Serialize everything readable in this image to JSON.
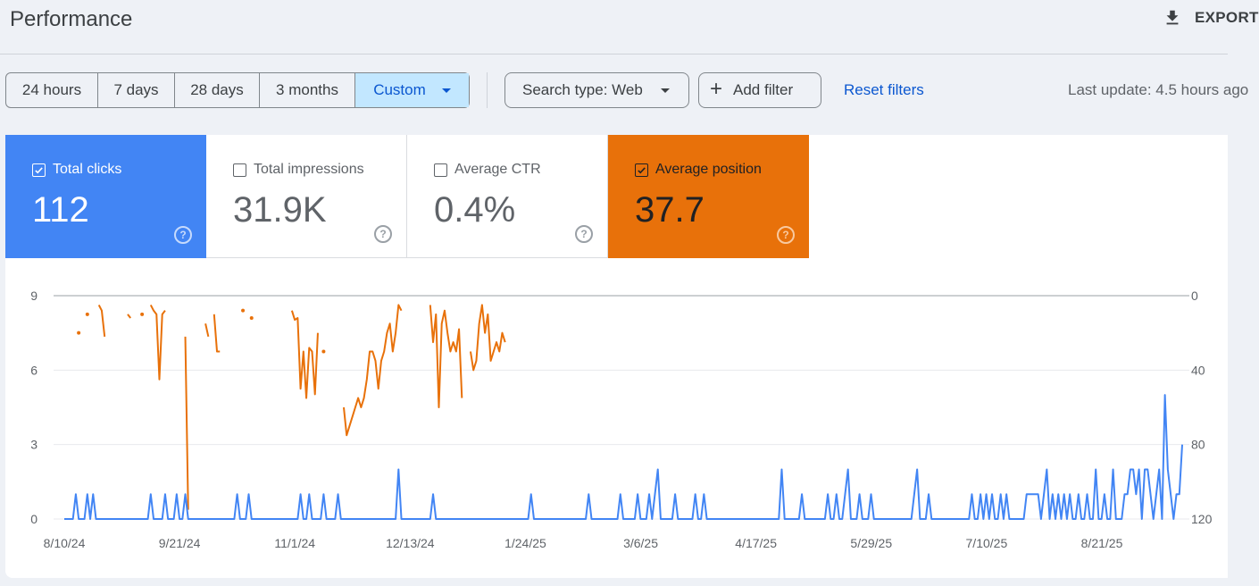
{
  "header": {
    "title": "Performance",
    "export_label": "EXPORT"
  },
  "date_ranges": {
    "options": [
      "24 hours",
      "7 days",
      "28 days",
      "3 months",
      "Custom"
    ],
    "selected": "Custom"
  },
  "filters": {
    "search_type": "Search type: Web",
    "add_filter": "Add filter",
    "reset": "Reset filters"
  },
  "last_update": "Last update: 4.5 hours ago",
  "metrics": {
    "clicks": {
      "label": "Total clicks",
      "value": "112",
      "checked": true
    },
    "impressions": {
      "label": "Total impressions",
      "value": "31.9K",
      "checked": false
    },
    "ctr": {
      "label": "Average CTR",
      "value": "0.4%",
      "checked": false
    },
    "position": {
      "label": "Average position",
      "value": "37.7",
      "checked": true
    }
  },
  "colors": {
    "clicks": "#4285f4",
    "position": "#e8710a",
    "selected_range_bg": "#c2e7ff",
    "link": "#0b57d0"
  },
  "chart_data": {
    "type": "line",
    "x_tick_labels": [
      "8/10/24",
      "9/21/24",
      "11/1/24",
      "12/13/24",
      "1/24/25",
      "3/6/25",
      "4/17/25",
      "5/29/25",
      "7/10/25",
      "8/21/25"
    ],
    "left_axis": {
      "series": "Total clicks",
      "ticks": [
        0,
        3,
        6,
        9
      ],
      "ylim": [
        0,
        9
      ]
    },
    "right_axis": {
      "series": "Average position",
      "ticks": [
        0,
        40,
        80,
        120
      ],
      "ylim": [
        120,
        0
      ],
      "inverted": true
    },
    "grid": true,
    "series": [
      {
        "name": "Total clicks",
        "axis": "left",
        "values": [
          0,
          0,
          0,
          0,
          1,
          0,
          0,
          0,
          1,
          0,
          1,
          0,
          0,
          0,
          0,
          0,
          0,
          0,
          0,
          0,
          0,
          0,
          0,
          0,
          0,
          0,
          0,
          0,
          0,
          0,
          1,
          0,
          0,
          0,
          0,
          1,
          0,
          0,
          0,
          1,
          0,
          0,
          1,
          0,
          0,
          0,
          0,
          0,
          0,
          0,
          0,
          0,
          0,
          0,
          0,
          0,
          0,
          0,
          0,
          0,
          1,
          0,
          0,
          0,
          1,
          0,
          0,
          0,
          0,
          0,
          0,
          0,
          0,
          0,
          0,
          0,
          0,
          0,
          0,
          0,
          0,
          0,
          1,
          0,
          0,
          1,
          0,
          0,
          0,
          0,
          1,
          0,
          0,
          0,
          0,
          1,
          0,
          0,
          0,
          0,
          0,
          0,
          0,
          0,
          0,
          0,
          0,
          0,
          0,
          0,
          0,
          0,
          0,
          0,
          0,
          0,
          2,
          0,
          0,
          0,
          0,
          0,
          0,
          0,
          0,
          0,
          0,
          0,
          1,
          0,
          0,
          0,
          0,
          0,
          0,
          0,
          0,
          0,
          0,
          0,
          0,
          0,
          0,
          0,
          0,
          0,
          0,
          0,
          0,
          0,
          0,
          0,
          0,
          0,
          0,
          0,
          0,
          0,
          0,
          0,
          0,
          0,
          1,
          0,
          0,
          0,
          0,
          0,
          0,
          0,
          0,
          0,
          0,
          0,
          0,
          0,
          0,
          0,
          0,
          0,
          0,
          0,
          1,
          0,
          0,
          0,
          0,
          0,
          0,
          0,
          0,
          0,
          0,
          1,
          0,
          0,
          0,
          0,
          0,
          1,
          0,
          0,
          0,
          1,
          0,
          1,
          2,
          0,
          0,
          0,
          0,
          0,
          1,
          0,
          0,
          0,
          0,
          0,
          0,
          1,
          0,
          0,
          1,
          0,
          0,
          0,
          0,
          0,
          0,
          0,
          0,
          0,
          0,
          0,
          0,
          0,
          0,
          0,
          0,
          0,
          0,
          0,
          0,
          0,
          0,
          0,
          0,
          0,
          0,
          2,
          0,
          0,
          0,
          0,
          0,
          0,
          1,
          0,
          0,
          0,
          0,
          0,
          0,
          0,
          0,
          1,
          0,
          0,
          1,
          0,
          0,
          1,
          2,
          0,
          0,
          0,
          1,
          0,
          0,
          0,
          1,
          0,
          0,
          0,
          0,
          0,
          0,
          0,
          0,
          0,
          0,
          0,
          0,
          0,
          0,
          1,
          2,
          0,
          0,
          0,
          1,
          0,
          0,
          0,
          0,
          0,
          0,
          0,
          0,
          0,
          0,
          0,
          0,
          0,
          0,
          1,
          0,
          0,
          1,
          0,
          1,
          0,
          1,
          0,
          0,
          1,
          0,
          1,
          0,
          0,
          0,
          0,
          0,
          0,
          1,
          1,
          1,
          1,
          1,
          0,
          1,
          2,
          0,
          1,
          0,
          1,
          0,
          1,
          0,
          1,
          0,
          0,
          1,
          0,
          0,
          1,
          0,
          0,
          2,
          0,
          0,
          1,
          0,
          0,
          2,
          0,
          0,
          0,
          1,
          1,
          2,
          2,
          1,
          2,
          0,
          2,
          2,
          1,
          0,
          1,
          2,
          0,
          5,
          2,
          1,
          0,
          1,
          1,
          3
        ]
      },
      {
        "name": "Average position",
        "axis": "right",
        "values": [
          null,
          null,
          null,
          null,
          null,
          20,
          null,
          null,
          10,
          null,
          null,
          null,
          5,
          8,
          22,
          null,
          null,
          null,
          null,
          null,
          null,
          null,
          10,
          12,
          null,
          null,
          null,
          10,
          null,
          null,
          5,
          8,
          10,
          45,
          10,
          8,
          null,
          null,
          null,
          null,
          null,
          null,
          22,
          115,
          null,
          null,
          null,
          null,
          null,
          15,
          22,
          null,
          10,
          30,
          30,
          null,
          null,
          null,
          null,
          null,
          null,
          null,
          8,
          null,
          null,
          12,
          null,
          null,
          null,
          null,
          null,
          null,
          null,
          null,
          null,
          null,
          null,
          null,
          null,
          8,
          13,
          12,
          50,
          30,
          55,
          28,
          30,
          53,
          20,
          null,
          30,
          null,
          null,
          null,
          null,
          null,
          null,
          60,
          75,
          70,
          65,
          60,
          55,
          60,
          55,
          45,
          30,
          30,
          35,
          50,
          35,
          30,
          20,
          15,
          30,
          20,
          5,
          8,
          null,
          null,
          null,
          null,
          null,
          null,
          null,
          null,
          null,
          5,
          25,
          10,
          60,
          15,
          8,
          20,
          30,
          25,
          30,
          18,
          55,
          null,
          null,
          30,
          40,
          35,
          15,
          5,
          20,
          10,
          35,
          30,
          25,
          30,
          20,
          25,
          null,
          null,
          null,
          null,
          null,
          null,
          null,
          null,
          null,
          null,
          null,
          null,
          null,
          null,
          null,
          null,
          null,
          null,
          null,
          null,
          null,
          null,
          null,
          null,
          null,
          null,
          null,
          null,
          null,
          null,
          null,
          null,
          null,
          null,
          null,
          null,
          null,
          null,
          null,
          null,
          null,
          null,
          null,
          null,
          null,
          null,
          null,
          null,
          null,
          null,
          null,
          null,
          null,
          null,
          null,
          null,
          null,
          null,
          null,
          null,
          null,
          null,
          null,
          null,
          null,
          null,
          null,
          null,
          null,
          null,
          null,
          null,
          null,
          null,
          null,
          null,
          null,
          null,
          null,
          null,
          null,
          null,
          null,
          null,
          null,
          null,
          null,
          null,
          null,
          null,
          null,
          null,
          null,
          null,
          null,
          null,
          null,
          null,
          null,
          null,
          null,
          null,
          null,
          null,
          null,
          null,
          null,
          null,
          null,
          null,
          null,
          null,
          null,
          null,
          null,
          null,
          null,
          null,
          null,
          null,
          null,
          null,
          null,
          null,
          null,
          null,
          null,
          null,
          null,
          null,
          null,
          null,
          null,
          null,
          null,
          null,
          null,
          null,
          null,
          null,
          null,
          null,
          null,
          null,
          null,
          null,
          null,
          null,
          null,
          null,
          null,
          null,
          null,
          null,
          null,
          null,
          null,
          null,
          null,
          null,
          null,
          null,
          null,
          null,
          null,
          null,
          null,
          null,
          null,
          null,
          null,
          null,
          null,
          null,
          null,
          null,
          null,
          null,
          null,
          null,
          null,
          null,
          null,
          null,
          null,
          null,
          null,
          null,
          null,
          null,
          null,
          null,
          null,
          null,
          null,
          null,
          null,
          null,
          null,
          null,
          null,
          null,
          null,
          null,
          null,
          null,
          null,
          null,
          null,
          null,
          null,
          null,
          null,
          null,
          null,
          null,
          null,
          null,
          null,
          null,
          null,
          null,
          null,
          null,
          null,
          null,
          null,
          null,
          null,
          null,
          null,
          null,
          null,
          null,
          null,
          null
        ]
      }
    ]
  }
}
